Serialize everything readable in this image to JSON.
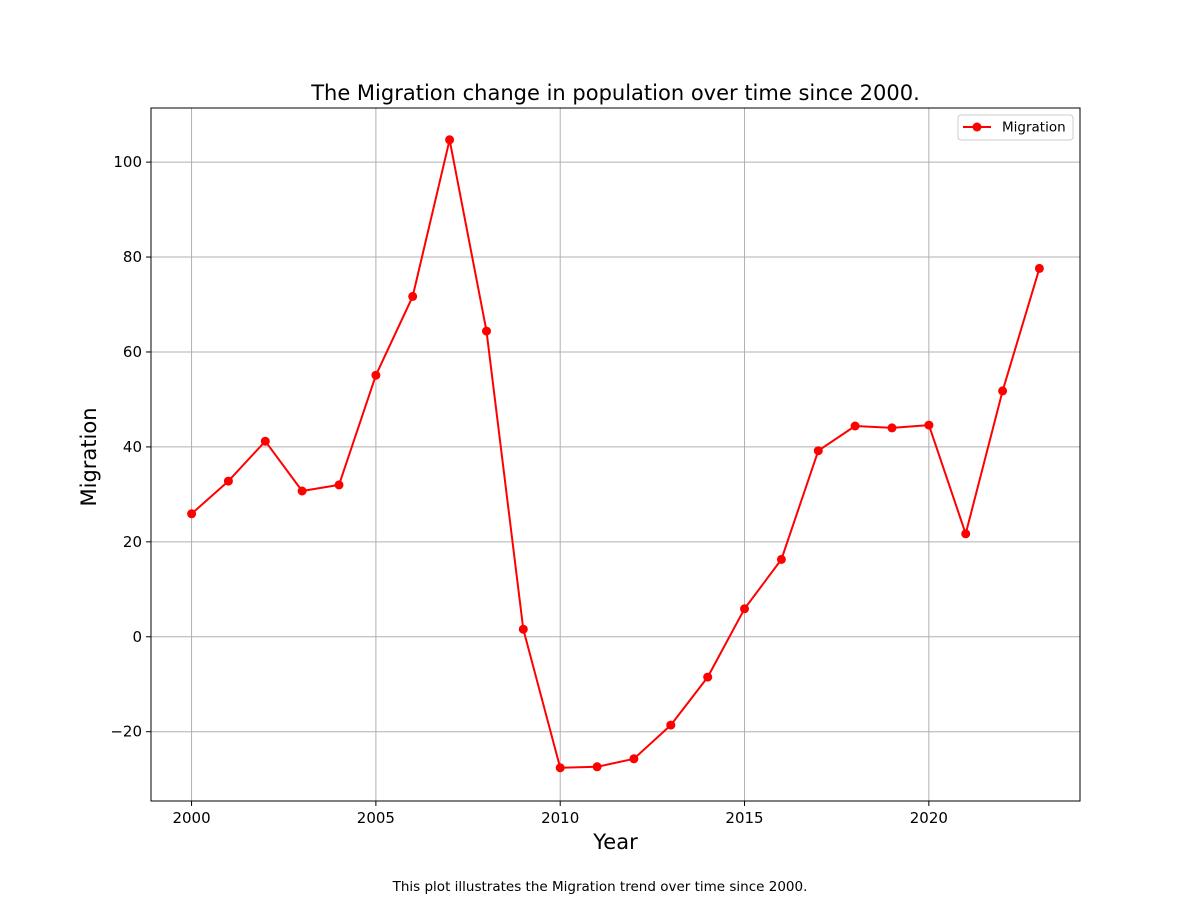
{
  "chart_data": {
    "type": "line",
    "title": "The Migration change in population over time since 2000.",
    "xlabel": "Year",
    "ylabel": "Migration",
    "caption": "This plot illustrates the Migration trend over time since 2000.",
    "xlim": [
      1998.9,
      2024.1
    ],
    "ylim": [
      -34.6,
      111.4
    ],
    "x_ticks": [
      2000,
      2005,
      2010,
      2015,
      2020
    ],
    "x_tick_labels": [
      "2000",
      "2005",
      "2010",
      "2015",
      "2020"
    ],
    "y_ticks": [
      -20,
      0,
      20,
      40,
      60,
      80,
      100
    ],
    "y_tick_labels": [
      "−20",
      "0",
      "20",
      "40",
      "60",
      "80",
      "100"
    ],
    "grid": true,
    "legend_position": "top-right",
    "series": [
      {
        "name": "Migration",
        "color": "#ff0000",
        "marker": "circle",
        "x": [
          2000,
          2001,
          2002,
          2003,
          2004,
          2005,
          2006,
          2007,
          2008,
          2009,
          2010,
          2011,
          2012,
          2013,
          2014,
          2015,
          2016,
          2017,
          2018,
          2019,
          2020,
          2021,
          2022,
          2023
        ],
        "values": [
          25.9,
          32.8,
          41.2,
          30.7,
          32.0,
          55.1,
          71.7,
          104.7,
          64.4,
          1.6,
          -27.6,
          -27.4,
          -25.7,
          -18.6,
          -8.5,
          5.9,
          16.3,
          39.2,
          44.4,
          44.0,
          44.6,
          21.7,
          51.8,
          77.6
        ]
      }
    ]
  }
}
